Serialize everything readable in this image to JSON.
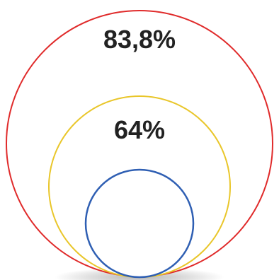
{
  "diagram": {
    "outer_circle": {
      "label": "83,8%",
      "stroke": "#e02b2b"
    },
    "middle_circle": {
      "label": "64%",
      "stroke": "#e9c62a"
    },
    "inner_circle": {
      "label": "",
      "stroke": "#2f5fb3"
    }
  }
}
